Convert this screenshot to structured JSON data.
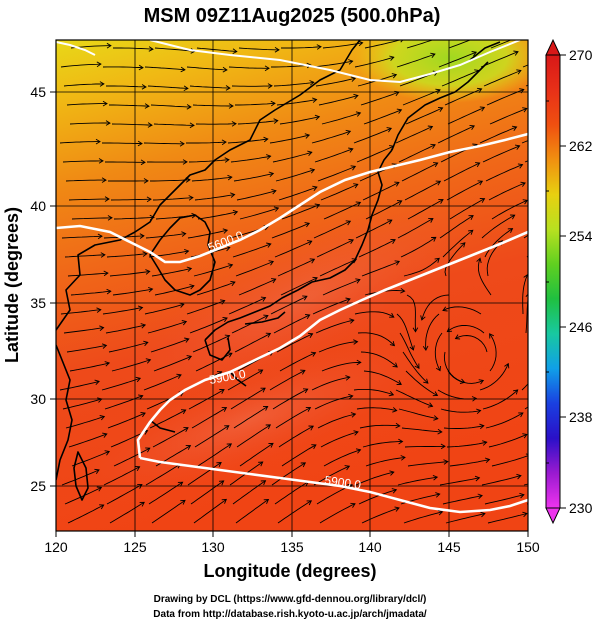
{
  "title": "MSM 09Z11Aug2025 (500.0hPa)",
  "axes": {
    "xlabel": "Longitude (degrees)",
    "ylabel": "Latitude  (degrees)",
    "x_ticks": [
      "120",
      "125",
      "130",
      "135",
      "140",
      "145",
      "150"
    ],
    "y_ticks": [
      "25",
      "30",
      "35",
      "40",
      "45"
    ],
    "xlim": [
      120,
      150
    ],
    "ylim": [
      22.4,
      47.6
    ]
  },
  "colorbar": {
    "ticks": [
      "270",
      "262",
      "254",
      "246",
      "238",
      "230"
    ],
    "range": [
      230,
      270
    ],
    "colors": [
      "#ee33ee",
      "#9a1ad0",
      "#2a10c8",
      "#1a40e0",
      "#10a0e8",
      "#18c8a0",
      "#20c040",
      "#60d020",
      "#b8e020",
      "#e8d010",
      "#f09010",
      "#f05010",
      "#e83018",
      "#d81818"
    ]
  },
  "contours": [
    {
      "label": "5600.0",
      "level": 5600
    },
    {
      "label": "5900.0",
      "level": 5900
    },
    {
      "label": "5900.0",
      "level": 5900
    }
  ],
  "credits": {
    "line1": "Drawing by DCL (https://www.gfd-dennou.org/library/dcl/)",
    "line2": "Data from http://database.rish.kyoto-u.ac.jp/arch/jmadata/"
  }
}
